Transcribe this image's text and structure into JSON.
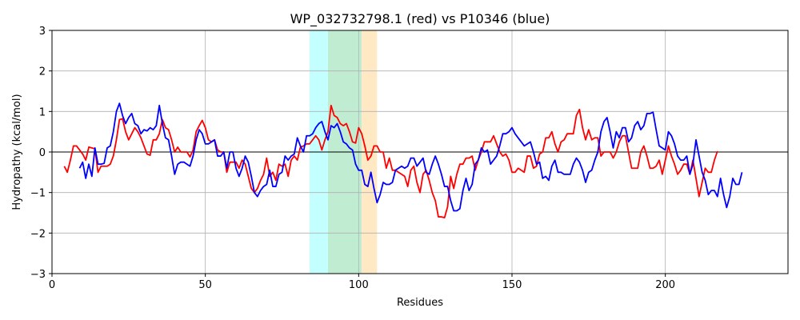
{
  "chart_data": {
    "type": "line",
    "title": "WP_032732798.1 (red) vs P10346 (blue)",
    "xlabel": "Residues",
    "ylabel": "Hydropathy (kcal/mol)",
    "xlim": [
      0,
      240
    ],
    "ylim": [
      -3,
      3
    ],
    "xticks": [
      0,
      50,
      100,
      150,
      200
    ],
    "yticks": [
      -3,
      -2,
      -1,
      0,
      1,
      2,
      3
    ],
    "grid": true,
    "zero_line": true,
    "regions": [
      {
        "name": "cyan-region",
        "x": [
          84,
          90
        ],
        "color": "#c4ffff"
      },
      {
        "name": "green-region",
        "x": [
          90,
          101
        ],
        "color": "#c0ecd2"
      },
      {
        "name": "orange-region",
        "x": [
          101,
          106
        ],
        "color": "#ffe9c4"
      }
    ],
    "series": [
      {
        "color": "#ff0000",
        "x_start": 4,
        "values": [
          -0.35,
          -0.5,
          -0.2,
          0.15,
          0.15,
          0.05,
          -0.05,
          -0.2,
          0.12,
          0.1,
          0.08,
          -0.5,
          -0.35,
          -0.35,
          -0.35,
          -0.3,
          -0.1,
          0.3,
          0.8,
          0.82,
          0.5,
          0.3,
          0.45,
          0.6,
          0.5,
          0.35,
          0.15,
          -0.05,
          -0.08,
          0.3,
          0.3,
          0.45,
          0.8,
          0.6,
          0.55,
          0.3,
          0.0,
          0.12,
          0.0,
          0.0,
          0.0,
          -0.12,
          0.05,
          0.5,
          0.65,
          0.78,
          0.6,
          0.3,
          0.25,
          0.3,
          0.05,
          0.0,
          0.0,
          -0.5,
          -0.25,
          -0.25,
          -0.25,
          -0.4,
          -0.2,
          -0.3,
          -0.6,
          -0.9,
          -1.0,
          -0.9,
          -0.7,
          -0.55,
          -0.15,
          -0.6,
          -0.5,
          -0.7,
          -0.3,
          -0.35,
          -0.3,
          -0.6,
          -0.2,
          -0.1,
          -0.2,
          0.12,
          0.15,
          0.2,
          0.2,
          0.3,
          0.4,
          0.3,
          0.05,
          0.3,
          0.5,
          1.15,
          0.9,
          0.85,
          0.7,
          0.65,
          0.7,
          0.5,
          0.25,
          0.22,
          0.6,
          0.45,
          0.15,
          -0.2,
          -0.1,
          0.15,
          0.15,
          0.0,
          0.0,
          -0.4,
          -0.15,
          -0.45,
          -0.45,
          -0.5,
          -0.55,
          -0.6,
          -0.85,
          -0.45,
          -0.35,
          -0.75,
          -1.0,
          -0.55,
          -0.45,
          -0.7,
          -1.0,
          -1.2,
          -1.6,
          -1.6,
          -1.62,
          -1.35,
          -0.6,
          -0.9,
          -0.55,
          -0.3,
          -0.3,
          -0.15,
          -0.15,
          -0.1,
          -0.45,
          -0.2,
          0.0,
          0.25,
          0.25,
          0.25,
          0.4,
          0.2,
          0.0,
          -0.1,
          -0.05,
          -0.2,
          -0.5,
          -0.5,
          -0.4,
          -0.45,
          -0.5,
          -0.1,
          -0.1,
          -0.4,
          -0.35,
          -0.05,
          0.0,
          0.35,
          0.35,
          0.5,
          0.2,
          0.0,
          0.25,
          0.3,
          0.45,
          0.45,
          0.45,
          0.9,
          1.05,
          0.6,
          0.3,
          0.55,
          0.3,
          0.35,
          0.35,
          -0.1,
          0.0,
          0.0,
          0.0,
          -0.15,
          0.0,
          0.25,
          0.4,
          0.4,
          0.0,
          -0.4,
          -0.4,
          -0.4,
          0.0,
          0.15,
          -0.1,
          -0.4,
          -0.4,
          -0.35,
          -0.2,
          -0.55,
          -0.2,
          0.15,
          -0.1,
          -0.3,
          -0.55,
          -0.45,
          -0.3,
          -0.3,
          -0.55,
          -0.2,
          -0.65,
          -1.1,
          -0.75,
          -0.4,
          -0.5,
          -0.5,
          -0.2,
          0.02
        ]
      },
      {
        "color": "#0000ff",
        "x_start": 9,
        "values": [
          -0.4,
          -0.25,
          -0.65,
          -0.3,
          -0.6,
          0.1,
          -0.3,
          -0.3,
          -0.28,
          0.1,
          0.15,
          0.5,
          1.0,
          1.2,
          0.9,
          0.7,
          0.85,
          0.95,
          0.7,
          0.65,
          0.45,
          0.55,
          0.52,
          0.6,
          0.55,
          0.65,
          1.15,
          0.7,
          0.35,
          0.3,
          -0.1,
          -0.55,
          -0.3,
          -0.25,
          -0.25,
          -0.3,
          -0.35,
          -0.1,
          0.3,
          0.55,
          0.45,
          0.2,
          0.2,
          0.25,
          0.3,
          -0.1,
          -0.1,
          0.0,
          -0.4,
          0.0,
          0.0,
          -0.4,
          -0.6,
          -0.4,
          -0.1,
          -0.25,
          -0.6,
          -1.0,
          -1.1,
          -0.95,
          -0.85,
          -0.8,
          -0.45,
          -0.85,
          -0.85,
          -0.55,
          -0.5,
          -0.1,
          -0.2,
          -0.1,
          -0.05,
          0.35,
          0.15,
          0.0,
          0.4,
          0.4,
          0.45,
          0.6,
          0.7,
          0.75,
          0.5,
          0.3,
          0.65,
          0.6,
          0.7,
          0.5,
          0.25,
          0.2,
          0.1,
          0.05,
          -0.3,
          -0.45,
          -0.45,
          -0.8,
          -0.85,
          -0.5,
          -0.9,
          -1.25,
          -1.05,
          -0.75,
          -0.8,
          -0.8,
          -0.75,
          -0.45,
          -0.4,
          -0.35,
          -0.4,
          -0.35,
          -0.15,
          -0.15,
          -0.35,
          -0.25,
          -0.15,
          -0.5,
          -0.55,
          -0.3,
          -0.1,
          -0.3,
          -0.55,
          -0.85,
          -0.85,
          -1.2,
          -1.45,
          -1.45,
          -1.4,
          -0.95,
          -0.65,
          -0.95,
          -0.8,
          -0.3,
          -0.2,
          0.1,
          0.0,
          0.05,
          -0.3,
          -0.2,
          -0.1,
          0.15,
          0.45,
          0.45,
          0.5,
          0.6,
          0.45,
          0.35,
          0.25,
          0.15,
          0.2,
          0.25,
          0.0,
          -0.3,
          -0.25,
          -0.65,
          -0.6,
          -0.7,
          -0.35,
          -0.2,
          -0.5,
          -0.5,
          -0.55,
          -0.55,
          -0.55,
          -0.3,
          -0.15,
          -0.25,
          -0.45,
          -0.75,
          -0.5,
          -0.45,
          -0.2,
          0.0,
          0.5,
          0.75,
          0.85,
          0.5,
          0.1,
          0.5,
          0.35,
          0.6,
          0.6,
          0.25,
          0.35,
          0.65,
          0.75,
          0.55,
          0.65,
          0.95,
          0.95,
          0.98,
          0.55,
          0.15,
          0.1,
          0.05,
          0.5,
          0.4,
          0.2,
          -0.1,
          -0.2,
          -0.2,
          -0.1,
          -0.55,
          -0.3,
          0.3,
          -0.1,
          -0.5,
          -0.7,
          -1.05,
          -0.95,
          -0.95,
          -1.1,
          -0.65,
          -1.05,
          -1.37,
          -1.1,
          -0.65,
          -0.8,
          -0.8,
          -0.5
        ]
      }
    ]
  }
}
